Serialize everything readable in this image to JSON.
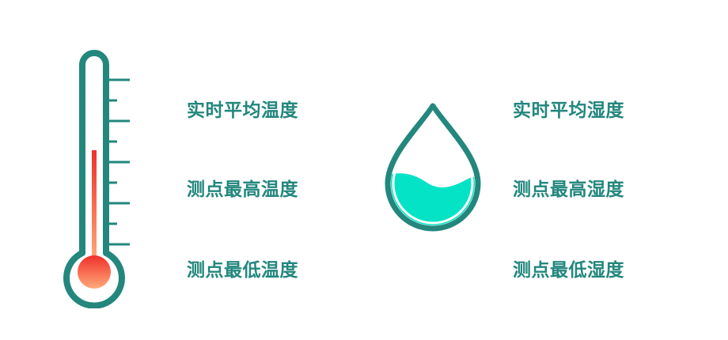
{
  "colors": {
    "primary": "#23877d",
    "mercury_top": "#f0302a",
    "mercury_bottom": "#ffa97a",
    "water": "#05e3c7",
    "background": "#ffffff"
  },
  "icons": {
    "temperature": "thermometer-icon",
    "humidity": "water-drop-icon"
  },
  "temperature": {
    "labels": {
      "average": "实时平均温度",
      "max": "测点最高温度",
      "min": "测点最低温度"
    }
  },
  "humidity": {
    "labels": {
      "average": "实时平均湿度",
      "max": "测点最高湿度",
      "min": "测点最低湿度"
    }
  }
}
